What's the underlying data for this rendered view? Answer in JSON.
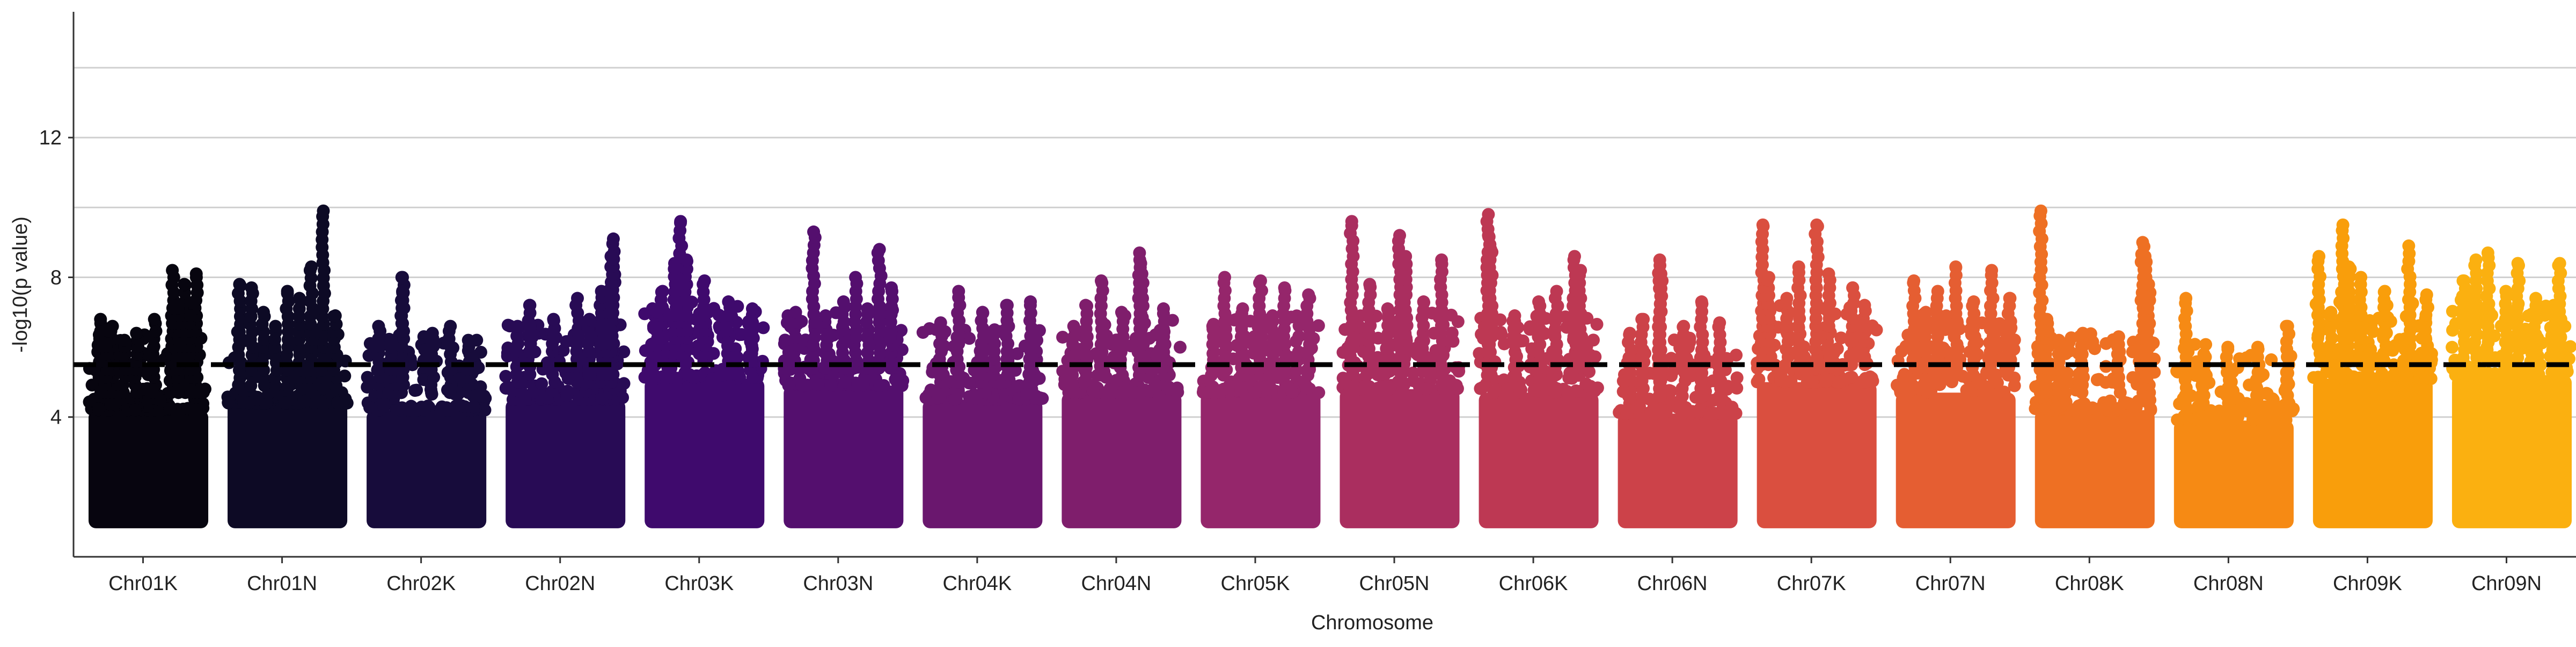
{
  "chart_data": {
    "type": "scatter",
    "title": "",
    "xlabel": "Chromosome",
    "ylabel": "-log10(p value)",
    "ylim": [
      0,
      15.6
    ],
    "yticks": [
      4,
      8,
      12
    ],
    "threshold": 5.5,
    "grid": {
      "y": true,
      "x": false
    },
    "point_floor": 1.0,
    "categories": [
      "Chr01K",
      "Chr01N",
      "Chr02K",
      "Chr02N",
      "Chr03K",
      "Chr03N",
      "Chr04K",
      "Chr04N",
      "Chr05K",
      "Chr05N",
      "Chr06K",
      "Chr06N",
      "Chr07K",
      "Chr07N",
      "Chr08K",
      "Chr08N",
      "Chr09K",
      "Chr09N"
    ],
    "colors": [
      "#07050f",
      "#0d0a25",
      "#170c3b",
      "#280b55",
      "#3f0a6d",
      "#540f6e",
      "#6a176e",
      "#7f1e6c",
      "#95266b",
      "#aa2e5f",
      "#bd3853",
      "#cc4249",
      "#da4f3f",
      "#e55e32",
      "#ee7023",
      "#f68a14",
      "#f99e0b",
      "#fbb010"
    ],
    "series": [
      {
        "name": "Chr01K",
        "top_points": [
          [
            0.7,
            8.2
          ],
          [
            0.8,
            7.8
          ],
          [
            0.9,
            8.1
          ],
          [
            0.75,
            7.2
          ],
          [
            0.55,
            6.8
          ],
          [
            0.1,
            6.8
          ],
          [
            0.2,
            6.6
          ],
          [
            0.4,
            6.4
          ],
          [
            0.3,
            6.2
          ],
          [
            0.15,
            6.5
          ],
          [
            0.85,
            6.9
          ]
        ]
      },
      {
        "name": "Chr01N",
        "top_points": [
          [
            0.8,
            9.9
          ],
          [
            0.7,
            8.3
          ],
          [
            0.1,
            7.8
          ],
          [
            0.2,
            7.7
          ],
          [
            0.5,
            7.6
          ],
          [
            0.3,
            7.0
          ],
          [
            0.6,
            7.4
          ],
          [
            0.9,
            6.9
          ],
          [
            0.4,
            6.6
          ]
        ]
      },
      {
        "name": "Chr02K",
        "top_points": [
          [
            0.3,
            8.0
          ],
          [
            0.3,
            7.6
          ],
          [
            0.1,
            6.6
          ],
          [
            0.7,
            6.6
          ],
          [
            0.55,
            6.4
          ],
          [
            0.85,
            6.2
          ],
          [
            0.2,
            6.0
          ]
        ]
      },
      {
        "name": "Chr02N",
        "top_points": [
          [
            0.9,
            9.1
          ],
          [
            0.88,
            8.6
          ],
          [
            0.8,
            7.6
          ],
          [
            0.6,
            7.4
          ],
          [
            0.2,
            7.2
          ],
          [
            0.4,
            6.8
          ],
          [
            0.7,
            6.8
          ],
          [
            0.1,
            6.6
          ]
        ]
      },
      {
        "name": "Chr03K",
        "top_points": [
          [
            0.3,
            9.6
          ],
          [
            0.35,
            8.5
          ],
          [
            0.25,
            8.4
          ],
          [
            0.5,
            7.9
          ],
          [
            0.15,
            7.6
          ],
          [
            0.7,
            7.3
          ],
          [
            0.9,
            7.1
          ],
          [
            0.1,
            7.0
          ]
        ]
      },
      {
        "name": "Chr03N",
        "top_points": [
          [
            0.25,
            9.3
          ],
          [
            0.8,
            8.8
          ],
          [
            0.6,
            8.0
          ],
          [
            0.9,
            7.7
          ],
          [
            0.5,
            7.3
          ],
          [
            0.1,
            7.0
          ],
          [
            0.35,
            6.9
          ],
          [
            0.7,
            7.1
          ]
        ]
      },
      {
        "name": "Chr04K",
        "top_points": [
          [
            0.3,
            7.6
          ],
          [
            0.9,
            7.3
          ],
          [
            0.7,
            7.2
          ],
          [
            0.5,
            7.0
          ],
          [
            0.15,
            6.7
          ],
          [
            0.6,
            6.5
          ]
        ]
      },
      {
        "name": "Chr04N",
        "top_points": [
          [
            0.33,
            7.9
          ],
          [
            0.65,
            8.7
          ],
          [
            0.66,
            8.4
          ],
          [
            0.67,
            8.1
          ],
          [
            0.2,
            7.2
          ],
          [
            0.5,
            7.0
          ],
          [
            0.85,
            7.1
          ],
          [
            0.1,
            6.6
          ]
        ]
      },
      {
        "name": "Chr05K",
        "top_points": [
          [
            0.2,
            8.0
          ],
          [
            0.5,
            7.9
          ],
          [
            0.7,
            7.7
          ],
          [
            0.9,
            7.5
          ],
          [
            0.35,
            7.1
          ],
          [
            0.6,
            6.9
          ],
          [
            0.1,
            6.6
          ]
        ]
      },
      {
        "name": "Chr05N",
        "top_points": [
          [
            0.1,
            9.6
          ],
          [
            0.5,
            9.2
          ],
          [
            0.55,
            8.6
          ],
          [
            0.85,
            8.5
          ],
          [
            0.25,
            7.8
          ],
          [
            0.7,
            7.3
          ],
          [
            0.4,
            7.1
          ]
        ]
      },
      {
        "name": "Chr06K",
        "top_points": [
          [
            0.08,
            9.8
          ],
          [
            0.08,
            9.2
          ],
          [
            0.1,
            8.8
          ],
          [
            0.8,
            8.6
          ],
          [
            0.85,
            8.2
          ],
          [
            0.5,
            7.3
          ],
          [
            0.3,
            6.9
          ],
          [
            0.65,
            7.6
          ]
        ]
      },
      {
        "name": "Chr06N",
        "top_points": [
          [
            0.35,
            8.5
          ],
          [
            0.36,
            8.1
          ],
          [
            0.7,
            7.3
          ],
          [
            0.2,
            6.8
          ],
          [
            0.55,
            6.6
          ],
          [
            0.85,
            6.7
          ],
          [
            0.1,
            6.4
          ]
        ]
      },
      {
        "name": "Chr07K",
        "top_points": [
          [
            0.05,
            9.5
          ],
          [
            0.5,
            9.5
          ],
          [
            0.35,
            8.3
          ],
          [
            0.1,
            8.0
          ],
          [
            0.6,
            8.1
          ],
          [
            0.8,
            7.7
          ],
          [
            0.25,
            7.4
          ],
          [
            0.9,
            7.2
          ]
        ]
      },
      {
        "name": "Chr07N",
        "top_points": [
          [
            0.5,
            8.3
          ],
          [
            0.8,
            8.2
          ],
          [
            0.15,
            7.9
          ],
          [
            0.35,
            7.6
          ],
          [
            0.65,
            7.3
          ],
          [
            0.95,
            7.4
          ],
          [
            0.25,
            7.0
          ]
        ]
      },
      {
        "name": "Chr08K",
        "top_points": [
          [
            0.05,
            9.9
          ],
          [
            0.9,
            9.0
          ],
          [
            0.92,
            8.6
          ],
          [
            0.95,
            7.8
          ],
          [
            0.1,
            6.8
          ],
          [
            0.4,
            6.4
          ],
          [
            0.7,
            6.3
          ],
          [
            0.2,
            6.2
          ]
        ]
      },
      {
        "name": "Chr08N",
        "top_points": [
          [
            0.1,
            7.4
          ],
          [
            0.95,
            6.6
          ],
          [
            0.7,
            6.0
          ],
          [
            0.45,
            6.0
          ],
          [
            0.25,
            5.8
          ]
        ]
      },
      {
        "name": "Chr09K",
        "top_points": [
          [
            0.25,
            9.5
          ],
          [
            0.05,
            8.6
          ],
          [
            0.3,
            8.3
          ],
          [
            0.8,
            8.9
          ],
          [
            0.4,
            8.0
          ],
          [
            0.6,
            7.6
          ],
          [
            0.95,
            7.5
          ],
          [
            0.15,
            7.0
          ]
        ]
      },
      {
        "name": "Chr09N",
        "top_points": [
          [
            0.3,
            8.7
          ],
          [
            0.2,
            8.5
          ],
          [
            0.55,
            8.4
          ],
          [
            0.9,
            8.4
          ],
          [
            0.1,
            7.9
          ],
          [
            0.45,
            7.6
          ],
          [
            0.7,
            7.4
          ],
          [
            0.85,
            7.2
          ]
        ]
      }
    ],
    "band_level": [
      5.3,
      5.5,
      5.3,
      5.6,
      6.2,
      6.0,
      5.6,
      5.8,
      5.8,
      5.9,
      5.8,
      5.2,
      6.1,
      5.8,
      5.3,
      5.0,
      6.2,
      6.3
    ]
  }
}
